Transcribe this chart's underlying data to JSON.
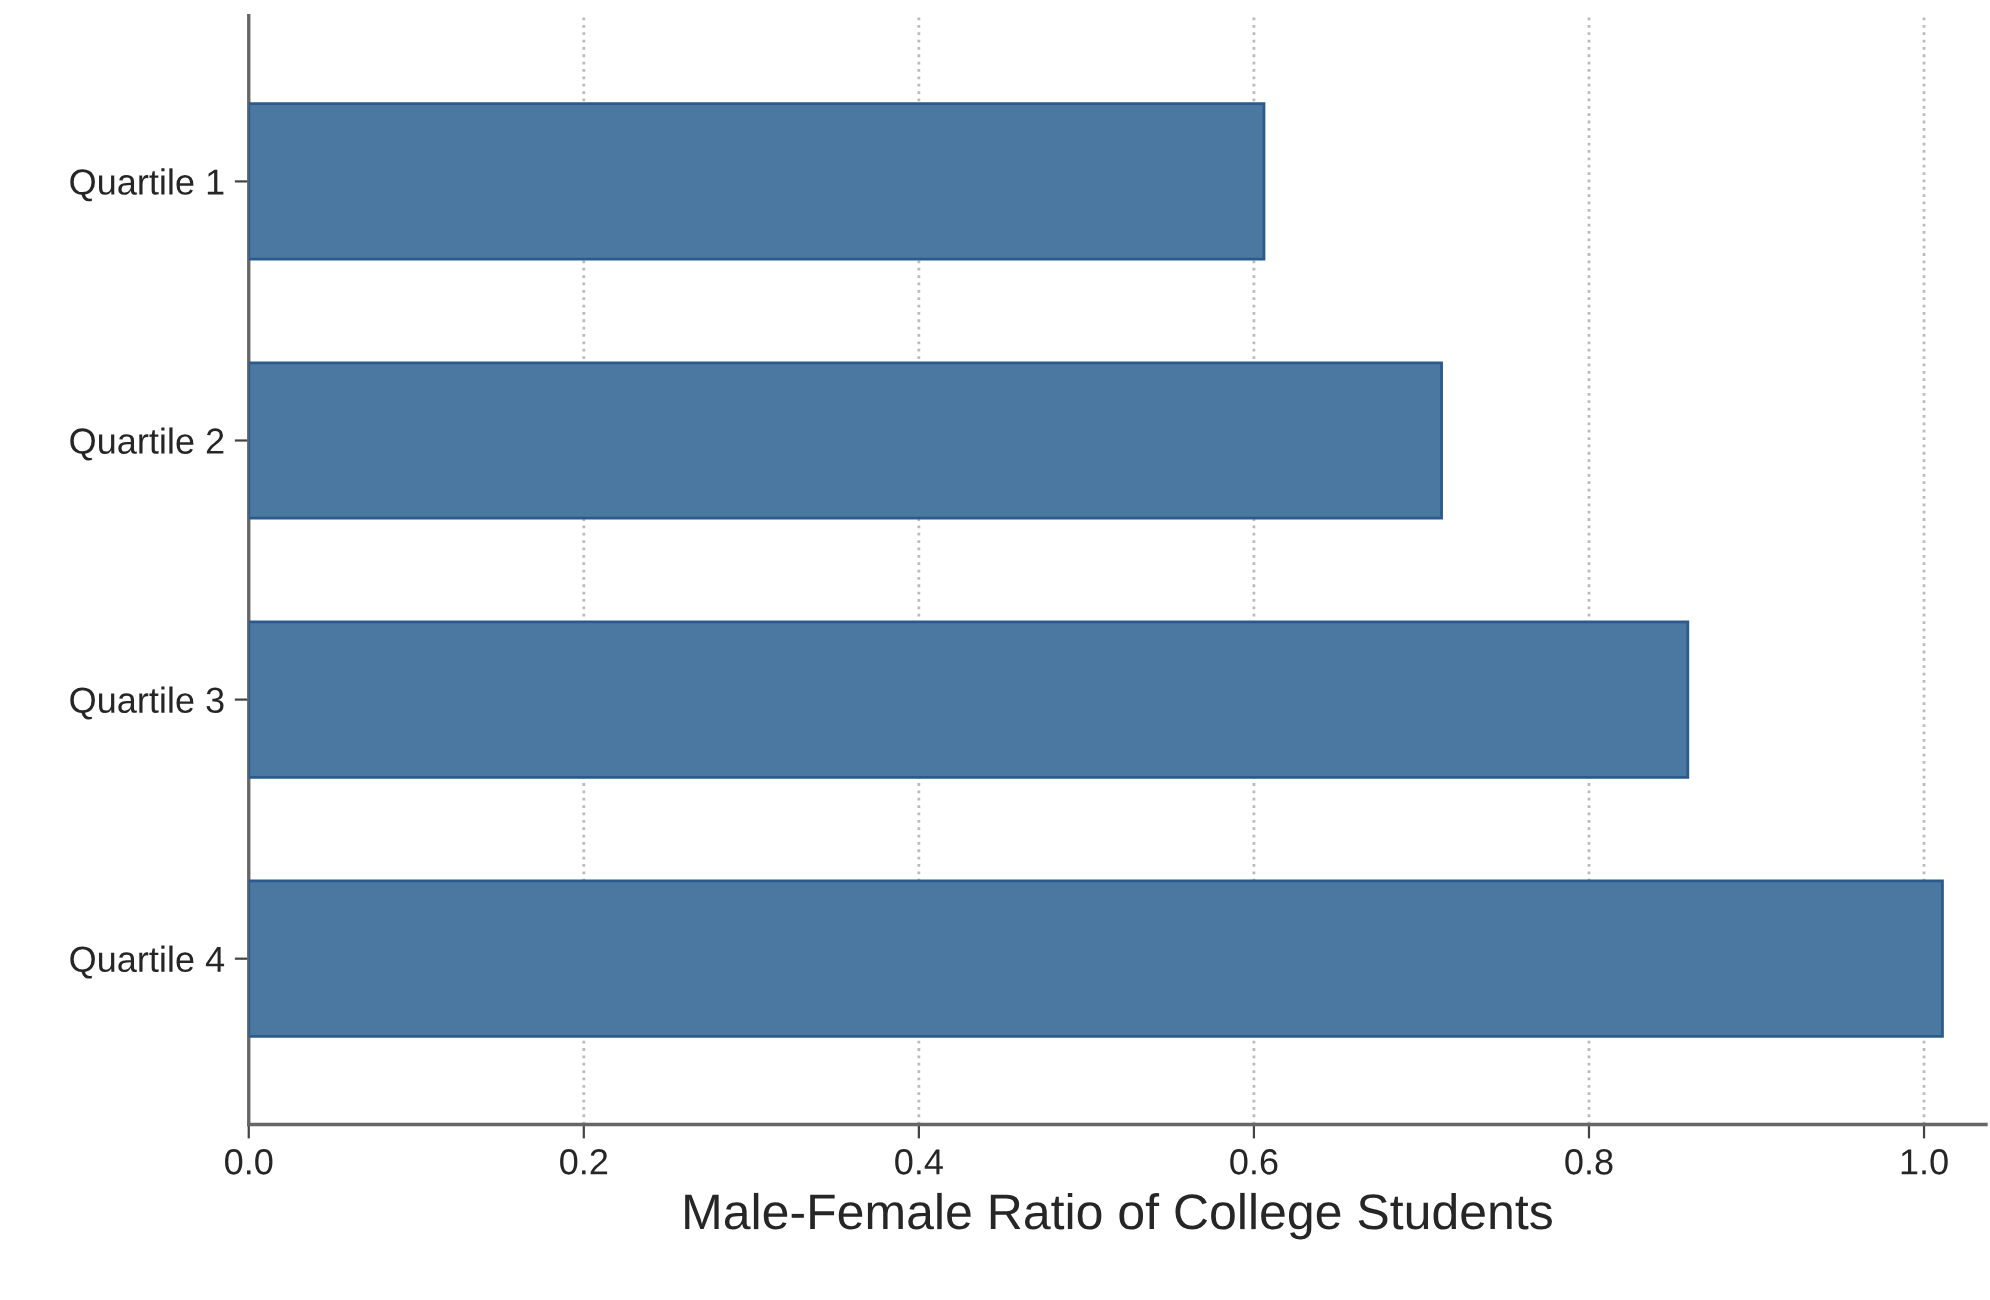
{
  "chart_data": {
    "type": "bar",
    "orientation": "horizontal",
    "xlabel": "Male-Female Ratio of College Students",
    "categories": [
      "Quartile 1",
      "Quartile 2",
      "Quartile 3",
      "Quartile 4"
    ],
    "values": [
      0.606,
      0.712,
      0.859,
      1.011
    ],
    "color": "#4a78a0",
    "xlim": [
      0,
      1.037
    ],
    "xticks": [
      {
        "value": 0,
        "label": "0.0"
      },
      0.2,
      0.4,
      0.6,
      0.8,
      {
        "value": 1,
        "label": "1.0"
      }
    ],
    "grid": "x"
  }
}
